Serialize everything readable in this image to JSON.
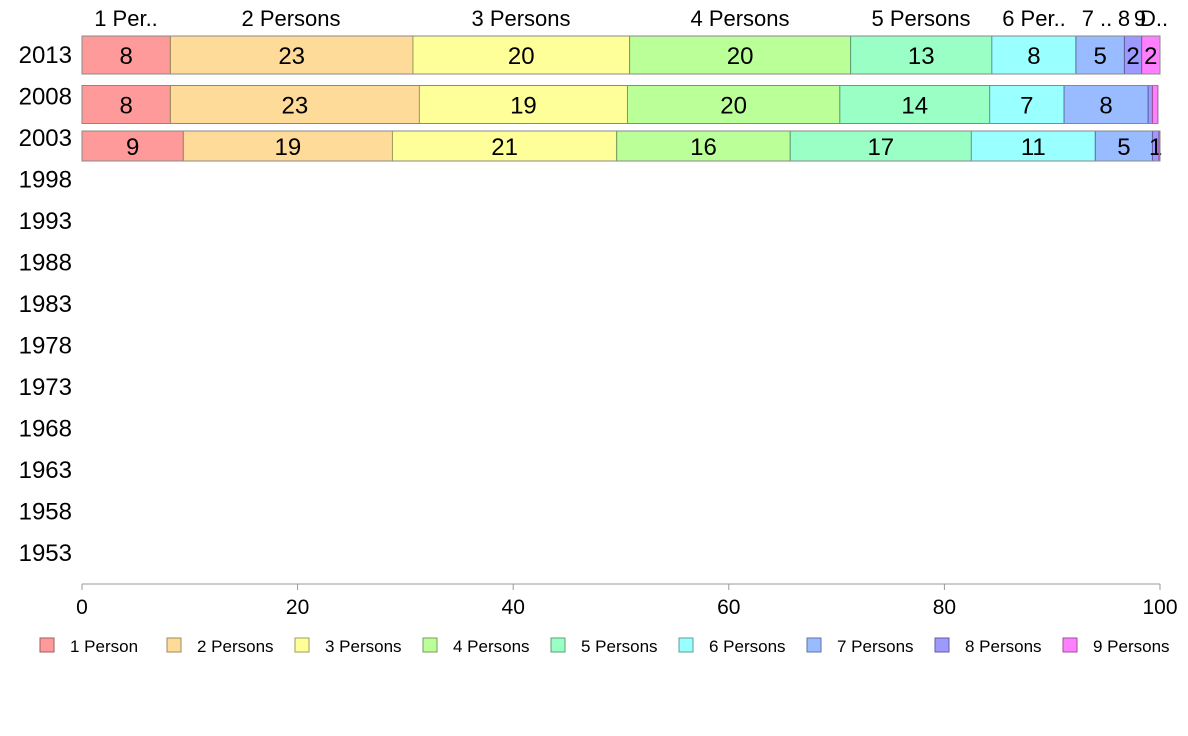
{
  "chart_data": {
    "type": "bar",
    "orientation": "horizontal",
    "stacked": true,
    "categories": [
      "2013",
      "2008",
      "2003",
      "1998",
      "1993",
      "1988",
      "1983",
      "1978",
      "1973",
      "1968",
      "1963",
      "1958",
      "1953"
    ],
    "series": [
      {
        "name": "1 Person",
        "color": "#ff9a9a",
        "values": [
          8.2,
          8.2,
          9.4,
          null,
          null,
          null,
          null,
          null,
          null,
          null,
          null,
          null,
          null
        ],
        "labels": [
          "8",
          "8",
          "9"
        ]
      },
      {
        "name": "2 Persons",
        "color": "#ffdb99",
        "values": [
          22.5,
          23.1,
          19.4,
          null,
          null,
          null,
          null,
          null,
          null,
          null,
          null,
          null,
          null
        ],
        "labels": [
          "23",
          "23",
          "19"
        ]
      },
      {
        "name": "3 Persons",
        "color": "#ffff99",
        "values": [
          20.1,
          19.3,
          20.8,
          null,
          null,
          null,
          null,
          null,
          null,
          null,
          null,
          null,
          null
        ],
        "labels": [
          "20",
          "19",
          "21"
        ]
      },
      {
        "name": "4 Persons",
        "color": "#bbff99",
        "values": [
          20.5,
          19.7,
          16.1,
          null,
          null,
          null,
          null,
          null,
          null,
          null,
          null,
          null,
          null
        ],
        "labels": [
          "20",
          "20",
          "16"
        ]
      },
      {
        "name": "5 Persons",
        "color": "#99ffc4",
        "values": [
          13.1,
          13.9,
          16.8,
          null,
          null,
          null,
          null,
          null,
          null,
          null,
          null,
          null,
          null
        ],
        "labels": [
          "13",
          "14",
          "17"
        ]
      },
      {
        "name": "6 Persons",
        "color": "#99ffff",
        "values": [
          7.8,
          6.9,
          11.5,
          null,
          null,
          null,
          null,
          null,
          null,
          null,
          null,
          null,
          null
        ],
        "labels": [
          "8",
          "7",
          "11"
        ]
      },
      {
        "name": "7 Persons",
        "color": "#99bbff",
        "values": [
          4.5,
          7.8,
          5.3,
          null,
          null,
          null,
          null,
          null,
          null,
          null,
          null,
          null,
          null
        ],
        "labels": [
          "5",
          "8",
          "5"
        ]
      },
      {
        "name": "8 Persons",
        "color": "#9c99ff",
        "values": [
          1.6,
          0.4,
          0.6,
          null,
          null,
          null,
          null,
          null,
          null,
          null,
          null,
          null,
          null
        ],
        "labels": [
          "2",
          "",
          "1"
        ]
      },
      {
        "name": "9 Persons",
        "color": "#ff80ff",
        "values": [
          1.7,
          0.5,
          0.1,
          null,
          null,
          null,
          null,
          null,
          null,
          null,
          null,
          null,
          null
        ],
        "labels": [
          "2",
          "",
          ""
        ]
      }
    ],
    "column_labels": [
      "1 Per..",
      "2 Persons",
      "3 Persons",
      "4 Persons",
      "5 Persons",
      "6 Per..",
      "7 ..",
      "8",
      "9",
      "D.."
    ],
    "xlim": [
      0,
      100
    ],
    "xticks": [
      "0",
      "20",
      "40",
      "60",
      "80",
      "100"
    ],
    "grid": false,
    "legend_position": "bottom",
    "legend": [
      "1 Person",
      "2 Persons",
      "3 Persons",
      "4 Persons",
      "5 Persons",
      "6 Persons",
      "7 Persons",
      "8 Persons",
      "9 Persons"
    ]
  }
}
